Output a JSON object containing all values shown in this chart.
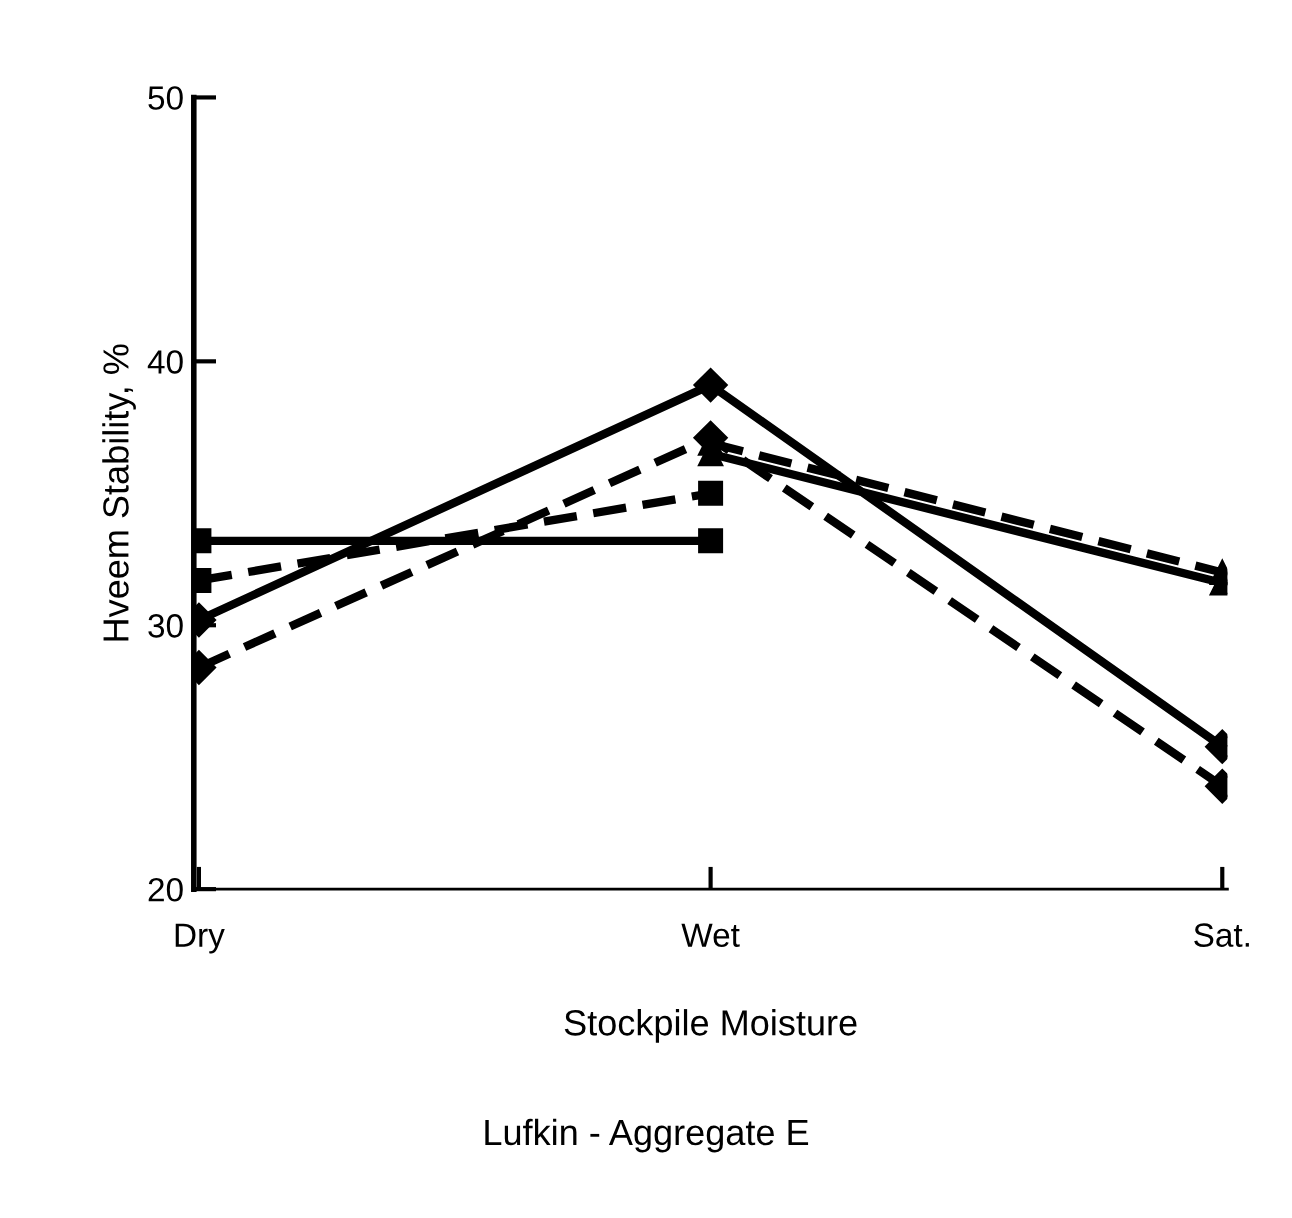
{
  "chart_data": {
    "type": "line",
    "title": "Lufkin - Aggregate E",
    "xlabel": "Stockpile Moisture",
    "ylabel": "Hveem Stability, %",
    "categories": [
      "Dry",
      "Wet",
      "Sat."
    ],
    "ylim": [
      20,
      50
    ],
    "yticks": [
      20,
      30,
      40,
      50
    ],
    "grid": false,
    "series": [
      {
        "color": "#000000",
        "marker": "square",
        "line_style": "solid",
        "values": [
          33.2,
          33.2,
          null
        ]
      },
      {
        "color": "#000000",
        "marker": "square",
        "line_style": "dashed",
        "values": [
          31.7,
          35.0,
          null
        ]
      },
      {
        "color": "#000000",
        "marker": "diamond",
        "line_style": "solid",
        "values": [
          30.2,
          39.1,
          25.4
        ]
      },
      {
        "color": "#000000",
        "marker": "diamond",
        "line_style": "dashed",
        "values": [
          28.4,
          37.1,
          23.9
        ]
      },
      {
        "color": "#000000",
        "marker": "triangle",
        "line_style": "solid",
        "values": [
          null,
          36.5,
          31.6
        ]
      },
      {
        "color": "#000000",
        "marker": "triangle",
        "line_style": "dashed",
        "values": [
          null,
          36.9,
          32.0
        ]
      }
    ]
  }
}
